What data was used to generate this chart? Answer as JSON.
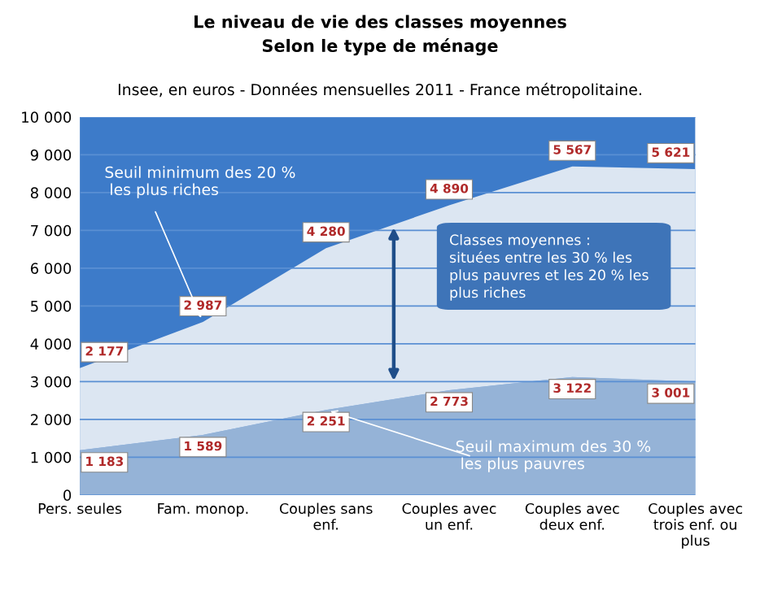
{
  "chart_data": {
    "type": "area",
    "title": "Le niveau de vie des classes moyennes\nSelon le type de ménage",
    "subtitle": "Insee, en euros - Données mensuelles 2011 - France métropolitaine.",
    "categories": [
      "Pers. seules",
      "Fam. monop.",
      "Couples sans\nenf.",
      "Couples avec\nun enf.",
      "Couples avec\ndeux enf.",
      "Couples avec\ntrois enf. ou\nplus"
    ],
    "stacked": true,
    "data_labels": true,
    "grid": "y",
    "bands": [
      {
        "axis": "y",
        "from": 0,
        "to": 10000,
        "color": "#3d7bc9"
      }
    ],
    "series": [
      {
        "color": "#95b3d7",
        "values": [
          1183,
          1589,
          2251,
          2773,
          3122,
          3001
        ]
      },
      {
        "color": "#dce6f2",
        "values": [
          2177,
          2987,
          4280,
          4890,
          5567,
          5621
        ]
      }
    ],
    "ylim": [
      0,
      10000
    ],
    "yticks": [
      0,
      {
        "value": 1000,
        "label": "1 000"
      },
      {
        "value": 2000,
        "label": "2 000"
      },
      {
        "value": 3000,
        "label": "3 000"
      },
      {
        "value": 4000,
        "label": "4 000"
      },
      {
        "value": 5000,
        "label": "5 000"
      },
      {
        "value": 6000,
        "label": "6 000"
      },
      {
        "value": 7000,
        "label": "7 000"
      },
      {
        "value": 8000,
        "label": "8 000"
      },
      {
        "value": 9000,
        "label": "9 000"
      },
      {
        "value": 10000,
        "label": "10 000"
      }
    ],
    "annotations": [
      {
        "text": "Seuil minimum des 20 %\n les plus riches",
        "x": "Fam. monop.",
        "y": 4576
      },
      "Classes moyennes :\nsituées entre les 30 % les\nplus pauvres et les 20 % les\nplus riches",
      {
        "text": "Seuil maximum des 30 %\n les plus pauvres",
        "x": "Couples sans\nenf.",
        "y": 2251
      }
    ]
  }
}
